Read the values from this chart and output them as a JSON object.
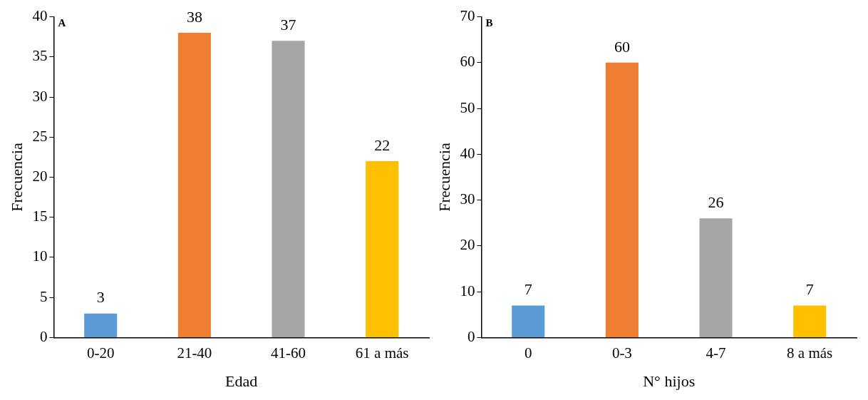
{
  "chart_data": [
    {
      "type": "bar",
      "title": "A",
      "xlabel": "Edad",
      "ylabel": "Frecuencia",
      "categories": [
        "0-20",
        "21-40",
        "41-60",
        "61 a más"
      ],
      "values": [
        3,
        38,
        37,
        22
      ],
      "colors": [
        "#5b9bd5",
        "#ed7d31",
        "#a5a5a5",
        "#ffc000"
      ],
      "ylim": [
        0,
        40
      ],
      "yticks": [
        0,
        5,
        10,
        15,
        20,
        25,
        30,
        35,
        40
      ],
      "data_labels": true,
      "grid": false,
      "legend": false
    },
    {
      "type": "bar",
      "title": "B",
      "xlabel": "N° hijos",
      "ylabel": "Frecuencia",
      "categories": [
        "0",
        "0-3",
        "4-7",
        "8 a más"
      ],
      "values": [
        7,
        60,
        26,
        7
      ],
      "colors": [
        "#5b9bd5",
        "#ed7d31",
        "#a5a5a5",
        "#ffc000"
      ],
      "ylim": [
        0,
        70
      ],
      "yticks": [
        0,
        10,
        20,
        30,
        40,
        50,
        60,
        70
      ],
      "data_labels": true,
      "grid": false,
      "legend": false
    }
  ]
}
